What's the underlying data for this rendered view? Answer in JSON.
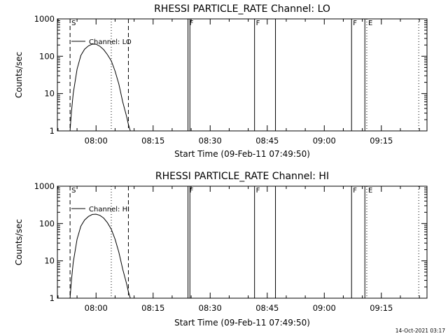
{
  "footer": {
    "timestamp": "14-Oct-2021 03:17"
  },
  "chart_data": [
    {
      "type": "line",
      "title": "RHESSI PARTICLE_RATE Channel: LO",
      "xlabel": "Start Time (09-Feb-11 07:49:50)",
      "ylabel": "Counts/sec",
      "yscale": "log",
      "ylim": [
        1,
        1000
      ],
      "xlim": [
        "07:49:50",
        "09:27:00"
      ],
      "x_ticks": [
        "08:00",
        "08:15",
        "08:30",
        "08:45",
        "09:00",
        "09:15"
      ],
      "y_ticks": [
        "1",
        "10",
        "100",
        "1000"
      ],
      "legend": {
        "position": "top-left",
        "entries": [
          "Channel: LO"
        ]
      },
      "series": [
        {
          "name": "Channel: LO",
          "x": [
            "07:53:10",
            "07:53:30",
            "07:54:00",
            "07:55:00",
            "07:56:00",
            "07:57:00",
            "07:58:00",
            "07:59:00",
            "08:00:00",
            "08:01:00",
            "08:02:00",
            "08:03:00",
            "08:04:00",
            "08:05:00",
            "08:06:00",
            "08:07:00",
            "08:08:00",
            "08:08:30",
            "08:09:00"
          ],
          "values": [
            1,
            3,
            10,
            45,
            105,
            155,
            190,
            210,
            210,
            185,
            150,
            110,
            75,
            40,
            18,
            6,
            2.5,
            1.5,
            1
          ]
        }
      ],
      "markers": [
        {
          "label": "S",
          "time": "07:53:10",
          "style": "dashed"
        },
        {
          "label": "",
          "time": "08:08:30",
          "style": "dashed"
        },
        {
          "label": "",
          "time": "08:04:00",
          "style": "dotted"
        },
        {
          "label": "F",
          "time": "08:24:10",
          "style": "solid"
        },
        {
          "label": "",
          "time": "08:24:40",
          "style": "solid"
        },
        {
          "label": "F",
          "time": "08:41:40",
          "style": "solid"
        },
        {
          "label": "",
          "time": "08:47:10",
          "style": "solid"
        },
        {
          "label": "F",
          "time": "09:07:10",
          "style": "solid"
        },
        {
          "label": "",
          "time": "09:10:40",
          "style": "solid"
        },
        {
          "label": "E",
          "time": "09:11:10",
          "style": "dotted"
        },
        {
          "label": "",
          "time": "09:24:50",
          "style": "dotted"
        }
      ]
    },
    {
      "type": "line",
      "title": "RHESSI PARTICLE_RATE Channel: HI",
      "xlabel": "Start Time (09-Feb-11 07:49:50)",
      "ylabel": "Counts/sec",
      "yscale": "log",
      "ylim": [
        1,
        1000
      ],
      "xlim": [
        "07:49:50",
        "09:27:00"
      ],
      "x_ticks": [
        "08:00",
        "08:15",
        "08:30",
        "08:45",
        "09:00",
        "09:15"
      ],
      "y_ticks": [
        "1",
        "10",
        "100",
        "1000"
      ],
      "legend": {
        "position": "top-left",
        "entries": [
          "Channel: HI"
        ]
      },
      "series": [
        {
          "name": "Channel: HI",
          "x": [
            "07:53:10",
            "07:53:30",
            "07:54:00",
            "07:55:00",
            "07:56:00",
            "07:57:00",
            "07:58:00",
            "07:59:00",
            "08:00:00",
            "08:01:00",
            "08:02:00",
            "08:03:00",
            "08:04:00",
            "08:05:00",
            "08:06:00",
            "08:07:00",
            "08:08:00",
            "08:08:30",
            "08:09:00"
          ],
          "values": [
            1,
            2.8,
            9,
            38,
            85,
            125,
            155,
            175,
            178,
            165,
            140,
            105,
            70,
            38,
            17,
            6,
            2.5,
            1.5,
            1
          ]
        }
      ],
      "markers": [
        {
          "label": "S",
          "time": "07:53:10",
          "style": "dashed"
        },
        {
          "label": "",
          "time": "08:08:30",
          "style": "dashed"
        },
        {
          "label": "",
          "time": "08:04:00",
          "style": "dotted"
        },
        {
          "label": "F",
          "time": "08:24:10",
          "style": "solid"
        },
        {
          "label": "",
          "time": "08:24:40",
          "style": "solid"
        },
        {
          "label": "F",
          "time": "08:41:40",
          "style": "solid"
        },
        {
          "label": "",
          "time": "08:47:10",
          "style": "solid"
        },
        {
          "label": "F",
          "time": "09:07:10",
          "style": "solid"
        },
        {
          "label": "",
          "time": "09:10:40",
          "style": "solid"
        },
        {
          "label": "E",
          "time": "09:11:10",
          "style": "dotted"
        },
        {
          "label": "",
          "time": "09:24:50",
          "style": "dotted"
        }
      ]
    }
  ]
}
